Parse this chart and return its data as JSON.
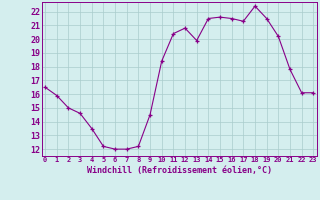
{
  "x": [
    0,
    1,
    2,
    3,
    4,
    5,
    6,
    7,
    8,
    9,
    10,
    11,
    12,
    13,
    14,
    15,
    16,
    17,
    18,
    19,
    20,
    21,
    22,
    23
  ],
  "y": [
    16.5,
    15.9,
    15.0,
    14.6,
    13.5,
    12.2,
    12.0,
    12.0,
    12.2,
    14.5,
    18.4,
    20.4,
    20.8,
    19.9,
    21.5,
    21.6,
    21.5,
    21.3,
    22.4,
    21.5,
    20.2,
    17.8,
    16.1,
    16.1
  ],
  "xlim": [
    -0.3,
    23.3
  ],
  "ylim": [
    11.5,
    22.7
  ],
  "yticks": [
    12,
    13,
    14,
    15,
    16,
    17,
    18,
    19,
    20,
    21,
    22
  ],
  "xticks": [
    0,
    1,
    2,
    3,
    4,
    5,
    6,
    7,
    8,
    9,
    10,
    11,
    12,
    13,
    14,
    15,
    16,
    17,
    18,
    19,
    20,
    21,
    22,
    23
  ],
  "xlabel": "Windchill (Refroidissement éolien,°C)",
  "line_color": "#880088",
  "marker": "+",
  "bg_color": "#d4eeee",
  "grid_color": "#aacccc",
  "xlabel_color": "#880088",
  "tick_color": "#880088",
  "spine_color": "#880088"
}
